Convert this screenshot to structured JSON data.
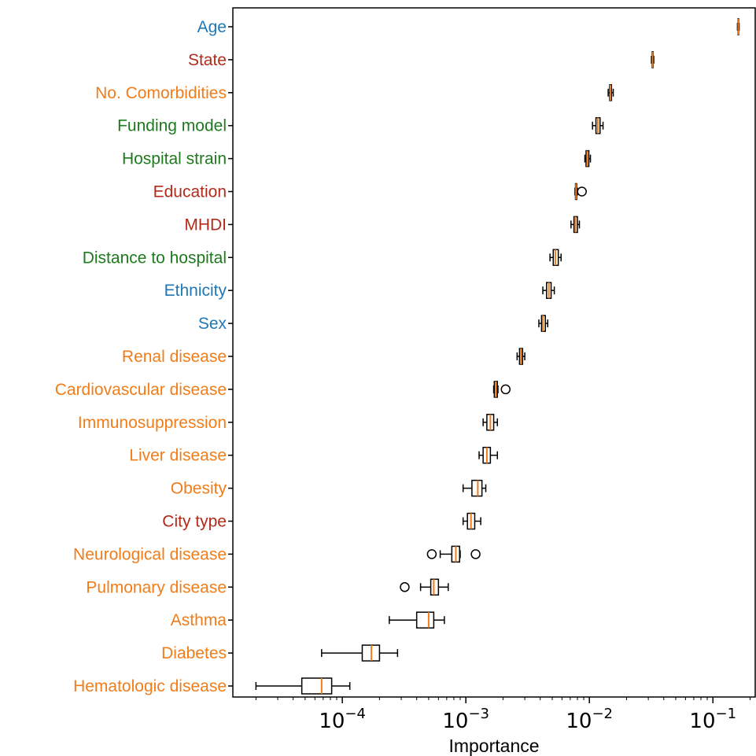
{
  "chart_data": {
    "type": "boxplot",
    "orientation": "horizontal",
    "xlabel": "Importance",
    "xscale": "log",
    "xlim": [
      1.3e-05,
      0.22
    ],
    "x_ticks": [
      {
        "value": 0.0001,
        "base": "10",
        "exp": "−4"
      },
      {
        "value": 0.001,
        "base": "10",
        "exp": "−3"
      },
      {
        "value": 0.01,
        "base": "10",
        "exp": "−2"
      },
      {
        "value": 0.1,
        "base": "10",
        "exp": "−1"
      }
    ],
    "grid": false,
    "group_colors": {
      "demographic": "#1f77b4",
      "regional": "#b22a1a",
      "clinical": "#f07d1a",
      "healthcare": "#1d7a1d"
    },
    "style": {
      "box_edge": "#000000",
      "median": "#f07d1a"
    },
    "features": [
      {
        "name": "Age",
        "group": "demographic",
        "whislo": 0.158,
        "q1": 0.1595,
        "median": 0.1605,
        "q3": 0.1615,
        "whishi": 0.163,
        "fliers": []
      },
      {
        "name": "State",
        "group": "regional",
        "whislo": 0.0318,
        "q1": 0.0322,
        "median": 0.0325,
        "q3": 0.0328,
        "whishi": 0.0332,
        "fliers": []
      },
      {
        "name": "No. Comorbidities",
        "group": "clinical",
        "whislo": 0.0142,
        "q1": 0.0146,
        "median": 0.0148,
        "q3": 0.0151,
        "whishi": 0.0156,
        "fliers": []
      },
      {
        "name": "Funding model",
        "group": "healthcare",
        "whislo": 0.0106,
        "q1": 0.0113,
        "median": 0.0117,
        "q3": 0.0122,
        "whishi": 0.0129,
        "fliers": []
      },
      {
        "name": "Hospital strain",
        "group": "healthcare",
        "whislo": 0.0092,
        "q1": 0.0094,
        "median": 0.0096,
        "q3": 0.0099,
        "whishi": 0.0102,
        "fliers": []
      },
      {
        "name": "Education",
        "group": "regional",
        "whislo": 0.00765,
        "q1": 0.00772,
        "median": 0.0078,
        "q3": 0.0079,
        "whishi": 0.008,
        "fliers": [
          0.0087
        ]
      },
      {
        "name": "MHDI",
        "group": "regional",
        "whislo": 0.0071,
        "q1": 0.0075,
        "median": 0.0077,
        "q3": 0.008,
        "whishi": 0.0083,
        "fliers": []
      },
      {
        "name": "Distance to hospital",
        "group": "healthcare",
        "whislo": 0.0048,
        "q1": 0.0051,
        "median": 0.0053,
        "q3": 0.0056,
        "whishi": 0.0059,
        "fliers": []
      },
      {
        "name": "Ethnicity",
        "group": "demographic",
        "whislo": 0.0042,
        "q1": 0.0045,
        "median": 0.0047,
        "q3": 0.0049,
        "whishi": 0.0052,
        "fliers": []
      },
      {
        "name": "Sex",
        "group": "demographic",
        "whislo": 0.0039,
        "q1": 0.0041,
        "median": 0.0042,
        "q3": 0.0044,
        "whishi": 0.0046,
        "fliers": []
      },
      {
        "name": "Renal disease",
        "group": "clinical",
        "whislo": 0.0026,
        "q1": 0.00272,
        "median": 0.0028,
        "q3": 0.00288,
        "whishi": 0.003,
        "fliers": []
      },
      {
        "name": "Cardiovascular disease",
        "group": "clinical",
        "whislo": 0.00168,
        "q1": 0.0017,
        "median": 0.00175,
        "q3": 0.0018,
        "whishi": 0.00182,
        "fliers": [
          0.0021
        ]
      },
      {
        "name": "Immunosuppression",
        "group": "clinical",
        "whislo": 0.00138,
        "q1": 0.00148,
        "median": 0.00158,
        "q3": 0.00168,
        "whishi": 0.0018,
        "fliers": []
      },
      {
        "name": "Liver disease",
        "group": "clinical",
        "whislo": 0.00128,
        "q1": 0.00138,
        "median": 0.00148,
        "q3": 0.00158,
        "whishi": 0.0018,
        "fliers": []
      },
      {
        "name": "Obesity",
        "group": "clinical",
        "whislo": 0.00095,
        "q1": 0.00112,
        "median": 0.00125,
        "q3": 0.00135,
        "whishi": 0.00145,
        "fliers": []
      },
      {
        "name": "City type",
        "group": "regional",
        "whislo": 0.00095,
        "q1": 0.00103,
        "median": 0.0011,
        "q3": 0.00118,
        "whishi": 0.00132,
        "fliers": []
      },
      {
        "name": "Neurological disease",
        "group": "clinical",
        "whislo": 0.00062,
        "q1": 0.00077,
        "median": 0.00083,
        "q3": 0.00089,
        "whishi": 0.0009,
        "fliers": [
          0.00053,
          0.0012
        ]
      },
      {
        "name": "Pulmonary disease",
        "group": "clinical",
        "whislo": 0.00043,
        "q1": 0.00052,
        "median": 0.00055,
        "q3": 0.0006,
        "whishi": 0.00072,
        "fliers": [
          0.00032
        ]
      },
      {
        "name": "Asthma",
        "group": "clinical",
        "whislo": 0.00024,
        "q1": 0.0004,
        "median": 0.0005,
        "q3": 0.00055,
        "whishi": 0.00067,
        "fliers": []
      },
      {
        "name": "Diabetes",
        "group": "clinical",
        "whislo": 6.8e-05,
        "q1": 0.000145,
        "median": 0.000172,
        "q3": 0.0002,
        "whishi": 0.00028,
        "fliers": []
      },
      {
        "name": "Hematologic disease",
        "group": "clinical",
        "whislo": 2e-05,
        "q1": 4.7e-05,
        "median": 6.8e-05,
        "q3": 8.2e-05,
        "whishi": 0.000115,
        "fliers": []
      }
    ]
  }
}
